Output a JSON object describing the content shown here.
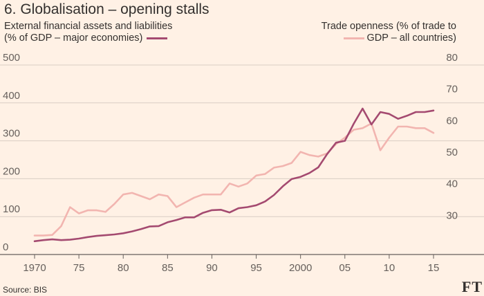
{
  "title": "6. Globalisation – opening stalls",
  "source": "Source: BIS",
  "logo": "FT",
  "legend": {
    "left_line1": "External financial assets and liabilities",
    "left_line2": "(% of GDP – major economies)",
    "right_line1": "Trade openness (% of trade to",
    "right_line2": "GDP – all countries)"
  },
  "colors": {
    "financial": "#a44a70",
    "trade": "#f2b5b0",
    "background": "#fff1e5",
    "grid": "#d9cdc3",
    "axis": "#66605c"
  },
  "chart_data": {
    "type": "line",
    "title": "6. Globalisation – opening stalls",
    "x": [
      1970,
      1971,
      1972,
      1973,
      1974,
      1975,
      1976,
      1977,
      1978,
      1979,
      1980,
      1981,
      1982,
      1983,
      1984,
      1985,
      1986,
      1987,
      1988,
      1989,
      1990,
      1991,
      1992,
      1993,
      1994,
      1995,
      1996,
      1997,
      1998,
      1999,
      2000,
      2001,
      2002,
      2003,
      2004,
      2005,
      2006,
      2007,
      2008,
      2009,
      2010,
      2011,
      2012,
      2013,
      2014,
      2015
    ],
    "x_tick_values": [
      1970,
      1975,
      1980,
      1985,
      1990,
      1995,
      2000,
      2005,
      2010,
      2015
    ],
    "x_tick_labels": [
      "1970",
      "75",
      "80",
      "85",
      "90",
      "95",
      "2000",
      "05",
      "10",
      "15"
    ],
    "y_left": {
      "label": "External financial assets and liabilities (% of GDP – major economies)",
      "range": [
        0,
        500
      ],
      "ticks": [
        0,
        100,
        200,
        300,
        400,
        500
      ]
    },
    "y_right": {
      "label": "Trade openness (% of trade to GDP – all countries)",
      "range": [
        20,
        80
      ],
      "ticks": [
        20,
        30,
        40,
        50,
        60,
        70,
        80
      ],
      "tick_labels": [
        "",
        "30",
        "40",
        "50",
        "60",
        "70",
        "80"
      ]
    },
    "series": [
      {
        "name": "External financial assets and liabilities",
        "axis": "left",
        "values": [
          35,
          38,
          40,
          38,
          39,
          42,
          46,
          49,
          51,
          53,
          56,
          61,
          67,
          74,
          75,
          85,
          91,
          98,
          98,
          110,
          117,
          118,
          111,
          122,
          125,
          130,
          140,
          157,
          180,
          199,
          205,
          215,
          230,
          265,
          295,
          300,
          345,
          385,
          343,
          376,
          371,
          358,
          366,
          376,
          376,
          380
        ]
      },
      {
        "name": "Trade openness",
        "axis": "right",
        "values": [
          26,
          26,
          26.2,
          29,
          35,
          33,
          34,
          34,
          33.5,
          36,
          39,
          39.5,
          38.5,
          37.5,
          39,
          38.5,
          35,
          36.5,
          38,
          39,
          39,
          39,
          42.5,
          41.5,
          42.5,
          45,
          45.5,
          47.5,
          48,
          49,
          52.5,
          51.5,
          51,
          52,
          55,
          57,
          59.5,
          60,
          61.5,
          53,
          57,
          60.5,
          60.5,
          60,
          60,
          58.5
        ]
      }
    ]
  }
}
